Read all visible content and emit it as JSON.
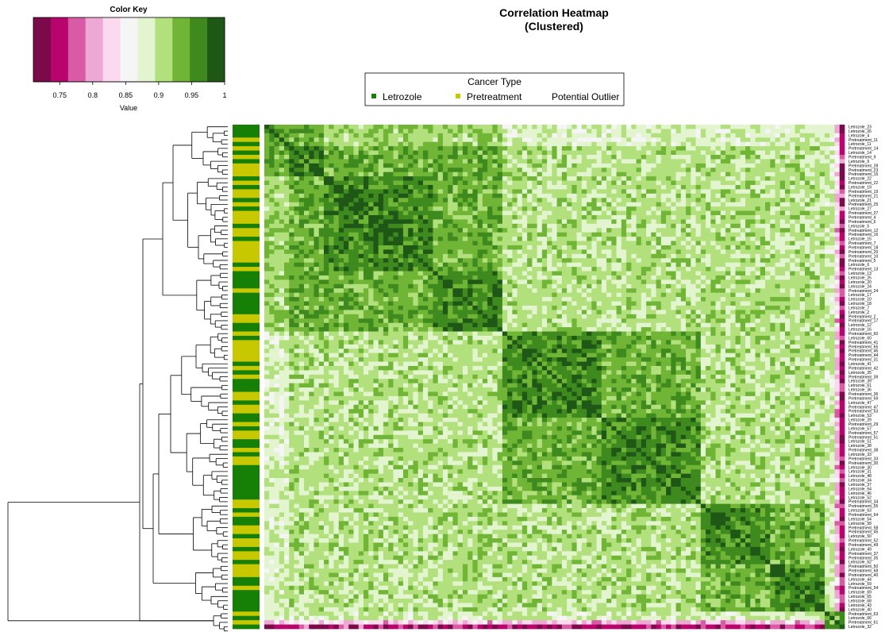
{
  "chart_data": {
    "type": "heatmap",
    "title": "Correlation Heatmap",
    "subtitle": "(Clustered)",
    "color_key": {
      "title": "Color Key",
      "xlabel": "Value",
      "range": [
        0.71,
        1.0
      ],
      "ticks": [
        "0.75",
        "0.8",
        "0.85",
        "0.9",
        "0.95",
        "1"
      ],
      "tick_values": [
        0.75,
        0.8,
        0.85,
        0.9,
        0.95,
        1.0
      ],
      "colors": [
        "#7a0a4a",
        "#b8056e",
        "#d95aa5",
        "#eea8d4",
        "#fbdaf0",
        "#f5f5f5",
        "#e2f5cf",
        "#b2e07c",
        "#70b536",
        "#3f8a1f",
        "#1f5716"
      ]
    },
    "legend": {
      "title": "Cancer Type",
      "position": "top-center",
      "items": [
        {
          "label": "Letrozole",
          "color": "#167f05"
        },
        {
          "label": "Pretreatment",
          "color": "#c8c800"
        },
        {
          "label": "Potential Outlier",
          "color": ""
        }
      ]
    },
    "dendrogram": "row",
    "rows": [
      {
        "label": "Letrozole_23",
        "group": "Letrozole",
        "outlier": false
      },
      {
        "label": "Letrozole_26",
        "group": "Letrozole",
        "outlier": false
      },
      {
        "label": "Letrozole_4",
        "group": "Letrozole",
        "outlier": false
      },
      {
        "label": "Pretreatment_11",
        "group": "Pretreatment",
        "outlier": false
      },
      {
        "label": "Letrozole_11",
        "group": "Letrozole",
        "outlier": false
      },
      {
        "label": "Pretreatment_14",
        "group": "Pretreatment",
        "outlier": false
      },
      {
        "label": "Letrozole_14",
        "group": "Letrozole",
        "outlier": false
      },
      {
        "label": "Pretreatment_9",
        "group": "Pretreatment",
        "outlier": false
      },
      {
        "label": "Letrozole_9",
        "group": "Letrozole",
        "outlier": false
      },
      {
        "label": "Pretreatment_28",
        "group": "Pretreatment",
        "outlier": false
      },
      {
        "label": "Pretreatment_23",
        "group": "Pretreatment",
        "outlier": false
      },
      {
        "label": "Pretreatment_15",
        "group": "Pretreatment",
        "outlier": false
      },
      {
        "label": "Letrozole_22",
        "group": "Letrozole",
        "outlier": false
      },
      {
        "label": "Pretreatment_22",
        "group": "Pretreatment",
        "outlier": false
      },
      {
        "label": "Letrozole_19",
        "group": "Letrozole",
        "outlier": false
      },
      {
        "label": "Pretreatment_19",
        "group": "Pretreatment",
        "outlier": false
      },
      {
        "label": "Pretreatment_21",
        "group": "Pretreatment",
        "outlier": false
      },
      {
        "label": "Letrozole_21",
        "group": "Letrozole",
        "outlier": false
      },
      {
        "label": "Pretreatment_25",
        "group": "Pretreatment",
        "outlier": false
      },
      {
        "label": "Letrozole_27",
        "group": "Letrozole",
        "outlier": false
      },
      {
        "label": "Pretreatment_27",
        "group": "Pretreatment",
        "outlier": false
      },
      {
        "label": "Pretreatment_4",
        "group": "Pretreatment",
        "outlier": false
      },
      {
        "label": "Pretreatment_6",
        "group": "Pretreatment",
        "outlier": false
      },
      {
        "label": "Letrozole_5",
        "group": "Letrozole",
        "outlier": false
      },
      {
        "label": "Pretreatment_12",
        "group": "Pretreatment",
        "outlier": false
      },
      {
        "label": "Pretreatment_16",
        "group": "Pretreatment",
        "outlier": false
      },
      {
        "label": "Letrozole_15",
        "group": "Letrozole",
        "outlier": false
      },
      {
        "label": "Pretreatment_7",
        "group": "Pretreatment",
        "outlier": false
      },
      {
        "label": "Pretreatment_18",
        "group": "Pretreatment",
        "outlier": false
      },
      {
        "label": "Pretreatment_20",
        "group": "Pretreatment",
        "outlier": false
      },
      {
        "label": "Pretreatment_10",
        "group": "Pretreatment",
        "outlier": false
      },
      {
        "label": "Pretreatment_5",
        "group": "Pretreatment",
        "outlier": false
      },
      {
        "label": "Letrozole_6",
        "group": "Letrozole",
        "outlier": false
      },
      {
        "label": "Pretreatment_13",
        "group": "Pretreatment",
        "outlier": false
      },
      {
        "label": "Letrozole_13",
        "group": "Letrozole",
        "outlier": false
      },
      {
        "label": "Letrozole_25",
        "group": "Letrozole",
        "outlier": false
      },
      {
        "label": "Letrozole_20",
        "group": "Letrozole",
        "outlier": false
      },
      {
        "label": "Letrozole_24",
        "group": "Letrozole",
        "outlier": false
      },
      {
        "label": "Pretreatment_24",
        "group": "Pretreatment",
        "outlier": false
      },
      {
        "label": "Letrozole_17",
        "group": "Letrozole",
        "outlier": false
      },
      {
        "label": "Letrozole_10",
        "group": "Letrozole",
        "outlier": false
      },
      {
        "label": "Letrozole_18",
        "group": "Letrozole",
        "outlier": false
      },
      {
        "label": "Letrozole_7",
        "group": "Letrozole",
        "outlier": false
      },
      {
        "label": "Letrozole_2",
        "group": "Letrozole",
        "outlier": false
      },
      {
        "label": "Pretreatment_2",
        "group": "Pretreatment",
        "outlier": false
      },
      {
        "label": "Pretreatment_17",
        "group": "Pretreatment",
        "outlier": false
      },
      {
        "label": "Letrozole_12",
        "group": "Letrozole",
        "outlier": false
      },
      {
        "label": "Letrozole_16",
        "group": "Letrozole",
        "outlier": false
      },
      {
        "label": "Pretreatment_60",
        "group": "Pretreatment",
        "outlier": false
      },
      {
        "label": "Letrozole_60",
        "group": "Letrozole",
        "outlier": false
      },
      {
        "label": "Pretreatment_41",
        "group": "Pretreatment",
        "outlier": false
      },
      {
        "label": "Pretreatment_65",
        "group": "Pretreatment",
        "outlier": false
      },
      {
        "label": "Pretreatment_46",
        "group": "Pretreatment",
        "outlier": false
      },
      {
        "label": "Pretreatment_44",
        "group": "Pretreatment",
        "outlier": false
      },
      {
        "label": "Pretreatment_31",
        "group": "Pretreatment",
        "outlier": false
      },
      {
        "label": "Letrozole_41",
        "group": "Letrozole",
        "outlier": false
      },
      {
        "label": "Pretreatment_42",
        "group": "Pretreatment",
        "outlier": false
      },
      {
        "label": "Letrozole_35",
        "group": "Letrozole",
        "outlier": false
      },
      {
        "label": "Pretreatment_39",
        "group": "Pretreatment",
        "outlier": false
      },
      {
        "label": "Letrozole_39",
        "group": "Letrozole",
        "outlier": false
      },
      {
        "label": "Letrozole_61",
        "group": "Letrozole",
        "outlier": false
      },
      {
        "label": "Letrozole_36",
        "group": "Letrozole",
        "outlier": false
      },
      {
        "label": "Pretreatment_36",
        "group": "Pretreatment",
        "outlier": false
      },
      {
        "label": "Pretreatment_59",
        "group": "Pretreatment",
        "outlier": false
      },
      {
        "label": "Letrozole_47",
        "group": "Letrozole",
        "outlier": false
      },
      {
        "label": "Pretreatment_47",
        "group": "Pretreatment",
        "outlier": false
      },
      {
        "label": "Pretreatment_53",
        "group": "Pretreatment",
        "outlier": false
      },
      {
        "label": "Letrozole_53",
        "group": "Letrozole",
        "outlier": false
      },
      {
        "label": "Letrozole_29",
        "group": "Letrozole",
        "outlier": false
      },
      {
        "label": "Pretreatment_29",
        "group": "Pretreatment",
        "outlier": false
      },
      {
        "label": "Letrozole_57",
        "group": "Letrozole",
        "outlier": false
      },
      {
        "label": "Pretreatment_57",
        "group": "Pretreatment",
        "outlier": false
      },
      {
        "label": "Pretreatment_51",
        "group": "Pretreatment",
        "outlier": false
      },
      {
        "label": "Letrozole_51",
        "group": "Letrozole",
        "outlier": false
      },
      {
        "label": "Letrozole_38",
        "group": "Letrozole",
        "outlier": false
      },
      {
        "label": "Pretreatment_38",
        "group": "Pretreatment",
        "outlier": false
      },
      {
        "label": "Letrozole_33",
        "group": "Letrozole",
        "outlier": false
      },
      {
        "label": "Pretreatment_33",
        "group": "Pretreatment",
        "outlier": false
      },
      {
        "label": "Pretreatment_30",
        "group": "Pretreatment",
        "outlier": false
      },
      {
        "label": "Letrozole_30",
        "group": "Letrozole",
        "outlier": false
      },
      {
        "label": "Letrozole_31",
        "group": "Letrozole",
        "outlier": false
      },
      {
        "label": "Letrozole_48",
        "group": "Letrozole",
        "outlier": false
      },
      {
        "label": "Letrozole_34",
        "group": "Letrozole",
        "outlier": false
      },
      {
        "label": "Letrozole_37",
        "group": "Letrozole",
        "outlier": false
      },
      {
        "label": "Letrozole_64",
        "group": "Letrozole",
        "outlier": false
      },
      {
        "label": "Letrozole_46",
        "group": "Letrozole",
        "outlier": false
      },
      {
        "label": "Letrozole_52",
        "group": "Letrozole",
        "outlier": false
      },
      {
        "label": "Pretreatment_34",
        "group": "Pretreatment",
        "outlier": false
      },
      {
        "label": "Pretreatment_55",
        "group": "Pretreatment",
        "outlier": false
      },
      {
        "label": "Letrozole_63",
        "group": "Letrozole",
        "outlier": false
      },
      {
        "label": "Pretreatment_64",
        "group": "Pretreatment",
        "outlier": false
      },
      {
        "label": "Letrozole_54",
        "group": "Letrozole",
        "outlier": false
      },
      {
        "label": "Letrozole_58",
        "group": "Letrozole",
        "outlier": false
      },
      {
        "label": "Pretreatment_58",
        "group": "Pretreatment",
        "outlier": false
      },
      {
        "label": "Pretreatment_45",
        "group": "Pretreatment",
        "outlier": false
      },
      {
        "label": "Letrozole_50",
        "group": "Letrozole",
        "outlier": false
      },
      {
        "label": "Pretreatment_52",
        "group": "Pretreatment",
        "outlier": false
      },
      {
        "label": "Pretreatment_49",
        "group": "Pretreatment",
        "outlier": false
      },
      {
        "label": "Letrozole_49",
        "group": "Letrozole",
        "outlier": false
      },
      {
        "label": "Pretreatment_37",
        "group": "Pretreatment",
        "outlier": false
      },
      {
        "label": "Pretreatment_35",
        "group": "Pretreatment",
        "outlier": false
      },
      {
        "label": "Letrozole_62",
        "group": "Letrozole",
        "outlier": false
      },
      {
        "label": "Pretreatment_50",
        "group": "Pretreatment",
        "outlier": false
      },
      {
        "label": "Pretreatment_68",
        "group": "Pretreatment",
        "outlier": false
      },
      {
        "label": "Pretreatment_40",
        "group": "Pretreatment",
        "outlier": false
      },
      {
        "label": "Letrozole_44",
        "group": "Letrozole",
        "outlier": false
      },
      {
        "label": "Letrozole_59",
        "group": "Letrozole",
        "outlier": false
      },
      {
        "label": "Pretreatment_54",
        "group": "Pretreatment",
        "outlier": false
      },
      {
        "label": "Letrozole_69",
        "group": "Letrozole",
        "outlier": false
      },
      {
        "label": "Letrozole_65",
        "group": "Letrozole",
        "outlier": false
      },
      {
        "label": "Letrozole_68",
        "group": "Letrozole",
        "outlier": false
      },
      {
        "label": "Letrozole_43",
        "group": "Letrozole",
        "outlier": false
      },
      {
        "label": "Letrozole_40",
        "group": "Letrozole",
        "outlier": true
      },
      {
        "label": "Pretreatment_63",
        "group": "Pretreatment",
        "outlier": true
      },
      {
        "label": "Letrozole_66",
        "group": "Letrozole",
        "outlier": true
      },
      {
        "label": "Pretreatment_61",
        "group": "Pretreatment",
        "outlier": true
      },
      {
        "label": "Letrozole_32",
        "group": "Letrozole",
        "outlier": true
      }
    ]
  }
}
